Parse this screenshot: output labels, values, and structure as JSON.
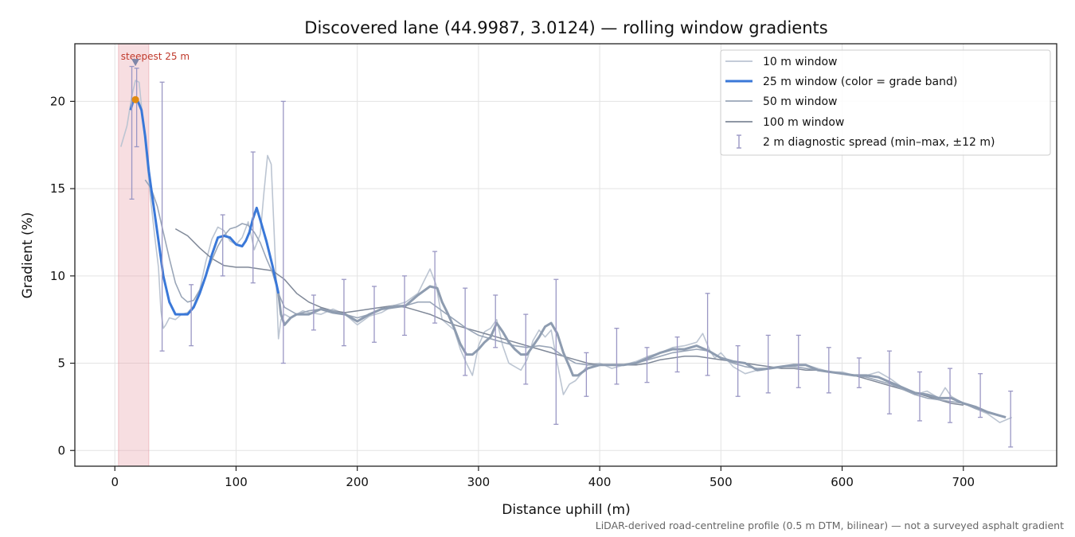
{
  "chart_data": {
    "type": "line",
    "title": "Discovered lane (44.9987, 3.0124) — rolling window gradients",
    "xlabel": "Distance uphill (m)",
    "ylabel": "Gradient (%)",
    "xlim": [
      -33,
      777
    ],
    "ylim": [
      -0.9,
      23.3
    ],
    "x_ticks": [
      0,
      100,
      200,
      300,
      400,
      500,
      600,
      700
    ],
    "y_ticks": [
      0,
      5,
      10,
      15,
      20
    ],
    "grid": true,
    "legend_position": "top-right",
    "footnote": "LiDAR-derived road-centreline profile (0.5 m DTM, bilinear) — not a surveyed asphalt gradient",
    "highlight_band": {
      "x": [
        3,
        28
      ],
      "label": "steepest 25 m",
      "color": "#e8a0a8"
    },
    "steepest_marker": {
      "x": 17,
      "y": 22.2
    },
    "peak_marker": {
      "x": 17,
      "y": 20.1,
      "color": "#e08a10"
    },
    "colors": {
      "w10": "#bcc5d2",
      "w25": "#3a78d8",
      "w25_rest": "#8e9cb0",
      "w50": "#9aa6b8",
      "w100": "#7f8898",
      "errorbar": "#9a97c4",
      "band": "#e8a0a8"
    },
    "series": [
      {
        "name": "10 m window",
        "x": [
          5,
          10,
          14,
          17,
          20,
          23,
          26,
          30,
          33,
          36,
          38,
          40,
          42,
          45,
          50,
          55,
          60,
          65,
          70,
          75,
          80,
          85,
          90,
          95,
          100,
          105,
          110,
          115,
          120,
          123,
          126,
          129,
          132,
          135,
          137,
          140,
          145,
          150,
          155,
          160,
          170,
          180,
          190,
          200,
          210,
          220,
          230,
          240,
          250,
          255,
          260,
          265,
          270,
          275,
          280,
          285,
          290,
          295,
          300,
          305,
          310,
          315,
          320,
          325,
          330,
          335,
          340,
          345,
          350,
          355,
          360,
          365,
          370,
          375,
          380,
          385,
          390,
          400,
          410,
          420,
          430,
          440,
          450,
          460,
          470,
          480,
          485,
          488,
          491,
          495,
          500,
          510,
          520,
          530,
          540,
          550,
          560,
          570,
          580,
          590,
          600,
          610,
          620,
          630,
          640,
          650,
          660,
          670,
          680,
          685,
          690,
          695,
          700,
          710,
          720,
          730,
          740
        ],
        "y": [
          17.4,
          18.6,
          20.3,
          21.2,
          21.1,
          19.0,
          16.9,
          14.1,
          12.2,
          10.5,
          8.0,
          7.0,
          7.2,
          7.6,
          7.5,
          7.8,
          7.9,
          8.3,
          9.2,
          10.8,
          12.1,
          12.8,
          12.6,
          12.0,
          11.8,
          12.2,
          13.1,
          11.5,
          12.4,
          14.8,
          16.9,
          16.4,
          11.5,
          6.4,
          7.5,
          7.8,
          7.6,
          7.8,
          8.0,
          7.9,
          7.8,
          8.1,
          7.8,
          7.2,
          7.7,
          7.9,
          8.3,
          8.5,
          9.0,
          9.7,
          10.4,
          9.5,
          7.5,
          7.2,
          6.9,
          5.8,
          5.0,
          4.3,
          6.0,
          6.8,
          7.0,
          7.5,
          6.0,
          5.0,
          4.8,
          4.6,
          5.2,
          6.3,
          6.9,
          6.5,
          6.9,
          5.0,
          3.2,
          3.8,
          4.0,
          4.4,
          4.9,
          5.0,
          4.7,
          4.9,
          5.1,
          5.4,
          5.6,
          5.9,
          6.0,
          6.2,
          6.7,
          6.2,
          5.7,
          5.3,
          5.6,
          4.8,
          4.4,
          4.6,
          4.7,
          4.8,
          4.9,
          4.9,
          4.7,
          4.5,
          4.5,
          4.3,
          4.3,
          4.5,
          4.1,
          3.6,
          3.2,
          3.4,
          3.0,
          3.6,
          3.1,
          2.9,
          2.7,
          2.4,
          2.1,
          1.6,
          1.9
        ]
      },
      {
        "name": "25 m window (color = grade band)",
        "x": [
          13,
          15,
          17,
          19,
          22,
          25,
          28,
          31,
          34,
          37,
          40,
          45,
          50,
          55,
          60,
          65,
          70,
          75,
          80,
          85,
          90,
          95,
          100,
          105,
          108,
          111,
          114,
          117,
          120,
          125,
          130,
          135,
          137,
          140,
          145,
          150,
          160,
          170,
          180,
          190,
          200,
          210,
          220,
          230,
          240,
          250,
          260,
          266,
          270,
          275,
          280,
          285,
          290,
          295,
          300,
          305,
          310,
          315,
          320,
          325,
          330,
          335,
          340,
          345,
          350,
          355,
          360,
          365,
          370,
          375,
          378,
          382,
          390,
          400,
          410,
          420,
          430,
          440,
          450,
          460,
          470,
          480,
          490,
          500,
          510,
          520,
          530,
          540,
          550,
          560,
          570,
          580,
          590,
          600,
          610,
          620,
          630,
          640,
          650,
          660,
          670,
          680,
          690,
          700,
          710,
          720,
          730,
          735
        ],
        "y": [
          19.5,
          20.0,
          20.1,
          20.0,
          19.5,
          18.0,
          16.0,
          14.5,
          13.0,
          11.5,
          10.0,
          8.5,
          7.8,
          7.8,
          7.8,
          8.2,
          9.0,
          10.0,
          11.2,
          12.2,
          12.3,
          12.2,
          11.8,
          11.7,
          12.0,
          12.5,
          13.3,
          13.9,
          13.2,
          12.0,
          10.6,
          9.0,
          7.8,
          7.2,
          7.6,
          7.8,
          7.8,
          8.1,
          7.9,
          7.8,
          7.4,
          7.8,
          8.1,
          8.2,
          8.3,
          8.9,
          9.4,
          9.3,
          8.5,
          7.8,
          7.0,
          6.1,
          5.5,
          5.5,
          5.8,
          6.2,
          6.5,
          7.3,
          6.8,
          6.2,
          5.8,
          5.5,
          5.5,
          6.0,
          6.5,
          7.1,
          7.3,
          6.7,
          5.6,
          4.8,
          4.3,
          4.3,
          4.7,
          4.9,
          4.9,
          4.9,
          5.0,
          5.3,
          5.6,
          5.8,
          5.8,
          6.0,
          5.7,
          5.3,
          5.1,
          5.0,
          4.6,
          4.7,
          4.8,
          4.9,
          4.9,
          4.6,
          4.5,
          4.4,
          4.3,
          4.3,
          4.2,
          3.9,
          3.6,
          3.3,
          3.2,
          3.0,
          3.0,
          2.7,
          2.5,
          2.2,
          2.0,
          1.9
        ],
        "highlight_until_x": 135
      },
      {
        "name": "50 m window",
        "x": [
          25,
          30,
          35,
          40,
          45,
          50,
          55,
          60,
          65,
          70,
          75,
          80,
          85,
          90,
          95,
          100,
          105,
          110,
          115,
          120,
          125,
          130,
          135,
          140,
          150,
          160,
          170,
          180,
          190,
          200,
          210,
          220,
          230,
          240,
          250,
          260,
          270,
          280,
          290,
          300,
          310,
          320,
          330,
          340,
          350,
          360,
          370,
          380,
          390,
          400,
          410,
          420,
          430,
          440,
          450,
          460,
          470,
          480,
          490,
          500,
          510,
          520,
          530,
          540,
          550,
          560,
          570,
          580,
          590,
          600,
          610,
          620,
          630,
          640,
          650,
          660,
          670,
          680,
          690,
          700,
          710,
          720
        ],
        "y": [
          15.5,
          15.0,
          14.0,
          12.5,
          11.0,
          9.6,
          8.8,
          8.5,
          8.6,
          9.2,
          10.0,
          10.9,
          11.7,
          12.3,
          12.7,
          12.8,
          13.0,
          12.9,
          12.5,
          11.9,
          11.0,
          10.2,
          9.0,
          8.2,
          7.8,
          8.0,
          8.1,
          8.0,
          7.8,
          7.6,
          7.8,
          8.1,
          8.3,
          8.3,
          8.5,
          8.5,
          8.0,
          7.5,
          7.0,
          6.6,
          6.4,
          6.2,
          6.0,
          5.9,
          6.0,
          5.9,
          5.4,
          5.0,
          4.9,
          4.9,
          4.9,
          4.9,
          5.0,
          5.2,
          5.4,
          5.6,
          5.7,
          5.8,
          5.7,
          5.3,
          5.0,
          4.8,
          4.7,
          4.7,
          4.8,
          4.8,
          4.7,
          4.6,
          4.5,
          4.4,
          4.3,
          4.2,
          4.0,
          3.8,
          3.5,
          3.2,
          3.0,
          2.9,
          2.8,
          2.7,
          2.4,
          2.2
        ]
      },
      {
        "name": "100 m window",
        "x": [
          50,
          60,
          70,
          80,
          90,
          100,
          110,
          120,
          130,
          140,
          150,
          160,
          170,
          180,
          190,
          200,
          210,
          220,
          230,
          240,
          250,
          260,
          270,
          280,
          290,
          300,
          310,
          320,
          330,
          340,
          350,
          360,
          370,
          380,
          390,
          400,
          410,
          420,
          430,
          440,
          450,
          460,
          470,
          480,
          490,
          500,
          510,
          520,
          530,
          540,
          550,
          560,
          570,
          580,
          590,
          600,
          610,
          620,
          630,
          640,
          650,
          660,
          670,
          680,
          690,
          700
        ],
        "y": [
          12.7,
          12.3,
          11.6,
          11.0,
          10.6,
          10.5,
          10.5,
          10.4,
          10.3,
          9.8,
          9.0,
          8.5,
          8.2,
          8.0,
          7.9,
          8.0,
          8.1,
          8.2,
          8.3,
          8.2,
          8.0,
          7.8,
          7.5,
          7.2,
          7.0,
          6.8,
          6.6,
          6.4,
          6.2,
          6.0,
          5.8,
          5.6,
          5.4,
          5.2,
          5.0,
          4.9,
          4.9,
          4.9,
          4.9,
          5.0,
          5.2,
          5.3,
          5.4,
          5.4,
          5.3,
          5.2,
          5.1,
          5.0,
          4.9,
          4.8,
          4.7,
          4.7,
          4.6,
          4.6,
          4.5,
          4.4,
          4.3,
          4.1,
          3.9,
          3.7,
          3.5,
          3.3,
          3.1,
          2.9,
          2.7,
          2.6
        ]
      }
    ],
    "error_bars": {
      "name": "2 m diagnostic spread (min–max, ±12 m)",
      "points": [
        {
          "x": 14,
          "y": 19.5,
          "min": 14.4,
          "max": 22.0
        },
        {
          "x": 18,
          "y": 20.1,
          "min": 17.4,
          "max": 21.9
        },
        {
          "x": 39,
          "y": 8.0,
          "min": 5.7,
          "max": 21.1
        },
        {
          "x": 63,
          "y": 7.9,
          "min": 6.0,
          "max": 9.5
        },
        {
          "x": 89,
          "y": 12.4,
          "min": 10.0,
          "max": 13.5
        },
        {
          "x": 114,
          "y": 13.3,
          "min": 9.6,
          "max": 17.1
        },
        {
          "x": 139,
          "y": 7.5,
          "min": 5.0,
          "max": 20.0
        },
        {
          "x": 164,
          "y": 7.9,
          "min": 6.9,
          "max": 8.9
        },
        {
          "x": 189,
          "y": 7.8,
          "min": 6.0,
          "max": 9.8
        },
        {
          "x": 214,
          "y": 7.9,
          "min": 6.2,
          "max": 9.4
        },
        {
          "x": 239,
          "y": 8.3,
          "min": 6.6,
          "max": 10.0
        },
        {
          "x": 264,
          "y": 9.3,
          "min": 7.3,
          "max": 11.4
        },
        {
          "x": 289,
          "y": 5.6,
          "min": 4.3,
          "max": 9.3
        },
        {
          "x": 314,
          "y": 7.3,
          "min": 5.9,
          "max": 8.9
        },
        {
          "x": 339,
          "y": 5.4,
          "min": 3.8,
          "max": 7.8
        },
        {
          "x": 364,
          "y": 6.8,
          "min": 1.5,
          "max": 9.8
        },
        {
          "x": 389,
          "y": 4.4,
          "min": 3.1,
          "max": 5.6
        },
        {
          "x": 414,
          "y": 4.9,
          "min": 3.8,
          "max": 7.0
        },
        {
          "x": 439,
          "y": 5.2,
          "min": 3.9,
          "max": 5.9
        },
        {
          "x": 464,
          "y": 5.8,
          "min": 4.5,
          "max": 6.5
        },
        {
          "x": 489,
          "y": 5.9,
          "min": 4.3,
          "max": 9.0
        },
        {
          "x": 514,
          "y": 5.1,
          "min": 3.1,
          "max": 6.0
        },
        {
          "x": 539,
          "y": 4.7,
          "min": 3.3,
          "max": 6.6
        },
        {
          "x": 564,
          "y": 4.9,
          "min": 3.6,
          "max": 6.6
        },
        {
          "x": 589,
          "y": 4.6,
          "min": 3.3,
          "max": 5.9
        },
        {
          "x": 614,
          "y": 4.3,
          "min": 3.6,
          "max": 5.3
        },
        {
          "x": 639,
          "y": 3.9,
          "min": 2.1,
          "max": 5.7
        },
        {
          "x": 664,
          "y": 3.3,
          "min": 1.7,
          "max": 4.5
        },
        {
          "x": 689,
          "y": 3.0,
          "min": 1.6,
          "max": 4.7
        },
        {
          "x": 714,
          "y": 2.5,
          "min": 1.9,
          "max": 4.4
        },
        {
          "x": 739,
          "y": 1.9,
          "min": 0.2,
          "max": 3.4
        }
      ]
    }
  }
}
